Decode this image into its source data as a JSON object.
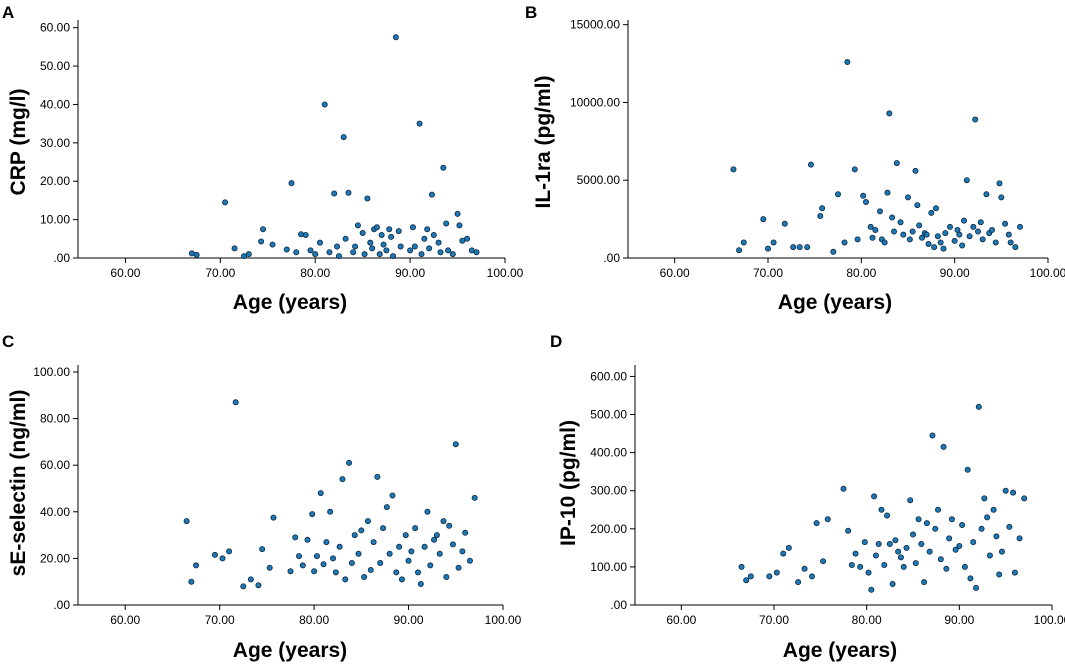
{
  "chart_data": [
    {
      "id": "A",
      "panel_label": "A",
      "type": "scatter",
      "xlabel": "Age (years)",
      "ylabel": "CRP (mg/l)",
      "xlim": [
        55,
        100
      ],
      "ylim": [
        0,
        62
      ],
      "xticks": [
        60,
        70,
        80,
        90,
        100
      ],
      "xtick_labels": [
        "60.00",
        "70.00",
        "80.00",
        "90.00",
        "100.00"
      ],
      "yticks": [
        0,
        10,
        20,
        30,
        40,
        50,
        60
      ],
      "ytick_labels": [
        ".00",
        "10.00",
        "20.00",
        "30.00",
        "40.00",
        "50.00",
        "60.00"
      ],
      "points": [
        [
          67.0,
          1.2
        ],
        [
          67.5,
          0.8
        ],
        [
          70.5,
          14.5
        ],
        [
          71.5,
          2.5
        ],
        [
          72.5,
          0.5
        ],
        [
          73,
          1
        ],
        [
          74.3,
          4.3
        ],
        [
          74.5,
          7.5
        ],
        [
          75.5,
          3.5
        ],
        [
          77,
          2.2
        ],
        [
          77.5,
          19.5
        ],
        [
          78,
          1.5
        ],
        [
          78.5,
          6.2
        ],
        [
          79,
          6
        ],
        [
          79.5,
          2
        ],
        [
          80,
          1
        ],
        [
          80.5,
          4
        ],
        [
          81,
          40
        ],
        [
          81.5,
          1.5
        ],
        [
          82,
          16.8
        ],
        [
          82.3,
          3
        ],
        [
          82.5,
          0.5
        ],
        [
          83,
          31.5
        ],
        [
          83.2,
          5
        ],
        [
          83.5,
          17
        ],
        [
          84,
          1.5
        ],
        [
          84.2,
          3
        ],
        [
          84.5,
          8.5
        ],
        [
          85,
          6.5
        ],
        [
          85.2,
          1
        ],
        [
          85.5,
          15.5
        ],
        [
          85.8,
          4
        ],
        [
          86,
          2.5
        ],
        [
          86.2,
          7.5
        ],
        [
          86.5,
          8
        ],
        [
          86.8,
          1
        ],
        [
          87,
          6
        ],
        [
          87.2,
          3.5
        ],
        [
          87.5,
          2
        ],
        [
          87.8,
          7.5
        ],
        [
          88,
          5.5
        ],
        [
          88.2,
          0.5
        ],
        [
          88.5,
          57.5
        ],
        [
          88.8,
          7
        ],
        [
          89,
          3
        ],
        [
          90,
          2
        ],
        [
          90.3,
          8
        ],
        [
          90.5,
          3
        ],
        [
          91,
          35
        ],
        [
          91.2,
          1
        ],
        [
          91.5,
          5
        ],
        [
          91.8,
          7.5
        ],
        [
          92,
          2.5
        ],
        [
          92.3,
          16.5
        ],
        [
          92.5,
          6
        ],
        [
          93,
          4
        ],
        [
          93.2,
          1.5
        ],
        [
          93.5,
          23.5
        ],
        [
          93.8,
          9
        ],
        [
          94,
          2
        ],
        [
          94.5,
          1
        ],
        [
          95,
          11.5
        ],
        [
          95.2,
          8.5
        ],
        [
          95.5,
          4.5
        ],
        [
          96,
          5
        ],
        [
          96.5,
          2
        ],
        [
          97,
          1.5
        ]
      ]
    },
    {
      "id": "B",
      "panel_label": "B",
      "type": "scatter",
      "xlabel": "Age (years)",
      "ylabel": "IL-1ra (pg/ml)",
      "xlim": [
        55,
        100
      ],
      "ylim": [
        0,
        15300
      ],
      "xticks": [
        60,
        70,
        80,
        90,
        100
      ],
      "xtick_labels": [
        "60.00",
        "70.00",
        "80.00",
        "90.00",
        "100.00"
      ],
      "yticks": [
        0,
        5000,
        10000,
        15000
      ],
      "ytick_labels": [
        ".00",
        "5000.00",
        "10000.00",
        "15000.00"
      ],
      "points": [
        [
          66.3,
          5700
        ],
        [
          66.9,
          500
        ],
        [
          67.4,
          1000
        ],
        [
          69.5,
          2500
        ],
        [
          70,
          600
        ],
        [
          70.6,
          1000
        ],
        [
          71.8,
          2200
        ],
        [
          72.7,
          700
        ],
        [
          73.4,
          700
        ],
        [
          74.2,
          700
        ],
        [
          74.6,
          6000
        ],
        [
          75.6,
          2700
        ],
        [
          75.8,
          3200
        ],
        [
          77,
          400
        ],
        [
          77.5,
          4100
        ],
        [
          78.2,
          1000
        ],
        [
          78.5,
          12600
        ],
        [
          79.3,
          5700
        ],
        [
          79.6,
          1200
        ],
        [
          80.2,
          4000
        ],
        [
          80.5,
          3600
        ],
        [
          81,
          2000
        ],
        [
          81.2,
          1300
        ],
        [
          81.5,
          1800
        ],
        [
          82,
          3000
        ],
        [
          82.2,
          1200
        ],
        [
          82.5,
          1000
        ],
        [
          82.8,
          4200
        ],
        [
          83,
          9300
        ],
        [
          83.3,
          2600
        ],
        [
          83.5,
          1700
        ],
        [
          83.8,
          6100
        ],
        [
          84.2,
          2300
        ],
        [
          84.5,
          1500
        ],
        [
          85,
          3900
        ],
        [
          85.2,
          1200
        ],
        [
          85.5,
          1700
        ],
        [
          85.8,
          5600
        ],
        [
          86,
          3400
        ],
        [
          86.2,
          2100
        ],
        [
          86.5,
          1300
        ],
        [
          86.8,
          1600
        ],
        [
          87,
          1500
        ],
        [
          87.2,
          900
        ],
        [
          87.5,
          2900
        ],
        [
          87.8,
          700
        ],
        [
          88,
          3200
        ],
        [
          88.2,
          1400
        ],
        [
          88.5,
          1000
        ],
        [
          88.8,
          600
        ],
        [
          89,
          1600
        ],
        [
          89.5,
          2000
        ],
        [
          90,
          1100
        ],
        [
          90.3,
          1800
        ],
        [
          90.5,
          1500
        ],
        [
          90.8,
          800
        ],
        [
          91,
          2400
        ],
        [
          91.3,
          5000
        ],
        [
          91.6,
          1400
        ],
        [
          92,
          2000
        ],
        [
          92.2,
          8900
        ],
        [
          92.5,
          1700
        ],
        [
          92.8,
          2300
        ],
        [
          93,
          1200
        ],
        [
          93.4,
          4100
        ],
        [
          93.7,
          1600
        ],
        [
          94,
          1800
        ],
        [
          94.4,
          1000
        ],
        [
          94.8,
          4800
        ],
        [
          95,
          3900
        ],
        [
          95.4,
          2200
        ],
        [
          95.8,
          1500
        ],
        [
          96,
          1000
        ],
        [
          96.5,
          700
        ],
        [
          97,
          2000
        ]
      ]
    },
    {
      "id": "C",
      "panel_label": "C",
      "type": "scatter",
      "xlabel": "Age (years)",
      "ylabel": "sE-selectin (ng/ml)",
      "xlim": [
        55,
        100
      ],
      "ylim": [
        0,
        103
      ],
      "xticks": [
        60,
        70,
        80,
        90,
        100
      ],
      "xtick_labels": [
        "60.00",
        "70.00",
        "80.00",
        "90.00",
        "100.00"
      ],
      "yticks": [
        0,
        20,
        40,
        60,
        80,
        100
      ],
      "ytick_labels": [
        ".00",
        "20.00",
        "40.00",
        "60.00",
        "80.00",
        "100.00"
      ],
      "points": [
        [
          66.5,
          36
        ],
        [
          67,
          10
        ],
        [
          67.5,
          17
        ],
        [
          69.5,
          21.5
        ],
        [
          70.3,
          20
        ],
        [
          71,
          23
        ],
        [
          71.7,
          87
        ],
        [
          72.5,
          8
        ],
        [
          73.3,
          11
        ],
        [
          74.1,
          8.5
        ],
        [
          74.5,
          24
        ],
        [
          75.3,
          16
        ],
        [
          75.7,
          37.5
        ],
        [
          77.5,
          14.5
        ],
        [
          78,
          29
        ],
        [
          78.4,
          21
        ],
        [
          78.8,
          17
        ],
        [
          79.3,
          28
        ],
        [
          79.8,
          39
        ],
        [
          80,
          14.5
        ],
        [
          80.3,
          21
        ],
        [
          80.7,
          48
        ],
        [
          81,
          17.5
        ],
        [
          81.3,
          27
        ],
        [
          81.7,
          40
        ],
        [
          82,
          20
        ],
        [
          82.3,
          14
        ],
        [
          82.7,
          25
        ],
        [
          83,
          54
        ],
        [
          83.3,
          11
        ],
        [
          83.7,
          61
        ],
        [
          84,
          18
        ],
        [
          84.3,
          30
        ],
        [
          84.7,
          22
        ],
        [
          85,
          32
        ],
        [
          85.3,
          12
        ],
        [
          85.7,
          36
        ],
        [
          86,
          15
        ],
        [
          86.3,
          27
        ],
        [
          86.7,
          55
        ],
        [
          87,
          18
        ],
        [
          87.3,
          33
        ],
        [
          87.7,
          42
        ],
        [
          88,
          22
        ],
        [
          88.3,
          47
        ],
        [
          88.7,
          14
        ],
        [
          89,
          25
        ],
        [
          89.3,
          11
        ],
        [
          89.7,
          30
        ],
        [
          90,
          19
        ],
        [
          90.3,
          23
        ],
        [
          90.7,
          33
        ],
        [
          91,
          14
        ],
        [
          91.3,
          9
        ],
        [
          91.7,
          25
        ],
        [
          92,
          40
        ],
        [
          92.3,
          17
        ],
        [
          92.7,
          28
        ],
        [
          93,
          30
        ],
        [
          93.3,
          22
        ],
        [
          93.7,
          36
        ],
        [
          94,
          12
        ],
        [
          94.3,
          34
        ],
        [
          94.7,
          26
        ],
        [
          95,
          69
        ],
        [
          95.3,
          16
        ],
        [
          95.7,
          23
        ],
        [
          96,
          31
        ],
        [
          96.5,
          19
        ],
        [
          97,
          46
        ]
      ]
    },
    {
      "id": "D",
      "panel_label": "D",
      "type": "scatter",
      "xlabel": "Age (years)",
      "ylabel": "IP-10 (pg/ml)",
      "xlim": [
        55,
        100
      ],
      "ylim": [
        0,
        630
      ],
      "xticks": [
        60,
        70,
        80,
        90,
        100
      ],
      "xtick_labels": [
        "60.00",
        "70.00",
        "80.00",
        "90.00",
        "100.00"
      ],
      "yticks": [
        0,
        100,
        200,
        300,
        400,
        500,
        600
      ],
      "ytick_labels": [
        ".00",
        "100.00",
        "200.00",
        "300.00",
        "400.00",
        "500.00",
        "600.00"
      ],
      "points": [
        [
          66.5,
          100
        ],
        [
          67,
          65
        ],
        [
          67.5,
          75
        ],
        [
          69.5,
          75
        ],
        [
          70.3,
          85
        ],
        [
          71,
          135
        ],
        [
          71.6,
          150
        ],
        [
          72.6,
          60
        ],
        [
          73.3,
          95
        ],
        [
          74.1,
          75
        ],
        [
          74.6,
          215
        ],
        [
          75.3,
          115
        ],
        [
          75.8,
          225
        ],
        [
          77.5,
          305
        ],
        [
          78,
          195
        ],
        [
          78.4,
          105
        ],
        [
          78.8,
          135
        ],
        [
          79.3,
          100
        ],
        [
          79.8,
          165
        ],
        [
          80.2,
          85
        ],
        [
          80.5,
          40
        ],
        [
          80.8,
          285
        ],
        [
          81,
          130
        ],
        [
          81.3,
          160
        ],
        [
          81.6,
          250
        ],
        [
          81.9,
          105
        ],
        [
          82.2,
          235
        ],
        [
          82.5,
          160
        ],
        [
          82.8,
          55
        ],
        [
          83.1,
          170
        ],
        [
          83.4,
          140
        ],
        [
          83.7,
          125
        ],
        [
          84,
          100
        ],
        [
          84.3,
          150
        ],
        [
          84.7,
          275
        ],
        [
          85,
          185
        ],
        [
          85.3,
          110
        ],
        [
          85.6,
          225
        ],
        [
          85.9,
          160
        ],
        [
          86.2,
          60
        ],
        [
          86.5,
          215
        ],
        [
          86.8,
          140
        ],
        [
          87.1,
          445
        ],
        [
          87.4,
          200
        ],
        [
          87.7,
          250
        ],
        [
          88,
          120
        ],
        [
          88.3,
          415
        ],
        [
          88.6,
          95
        ],
        [
          88.9,
          175
        ],
        [
          89.2,
          225
        ],
        [
          89.6,
          145
        ],
        [
          90,
          155
        ],
        [
          90.3,
          210
        ],
        [
          90.6,
          100
        ],
        [
          90.9,
          355
        ],
        [
          91.2,
          70
        ],
        [
          91.5,
          165
        ],
        [
          91.8,
          45
        ],
        [
          92.1,
          520
        ],
        [
          92.4,
          200
        ],
        [
          92.7,
          280
        ],
        [
          93,
          230
        ],
        [
          93.3,
          130
        ],
        [
          93.7,
          250
        ],
        [
          94,
          180
        ],
        [
          94.3,
          80
        ],
        [
          94.6,
          140
        ],
        [
          95,
          300
        ],
        [
          95.4,
          205
        ],
        [
          95.8,
          295
        ],
        [
          96,
          85
        ],
        [
          96.5,
          175
        ],
        [
          97,
          280
        ]
      ]
    }
  ]
}
